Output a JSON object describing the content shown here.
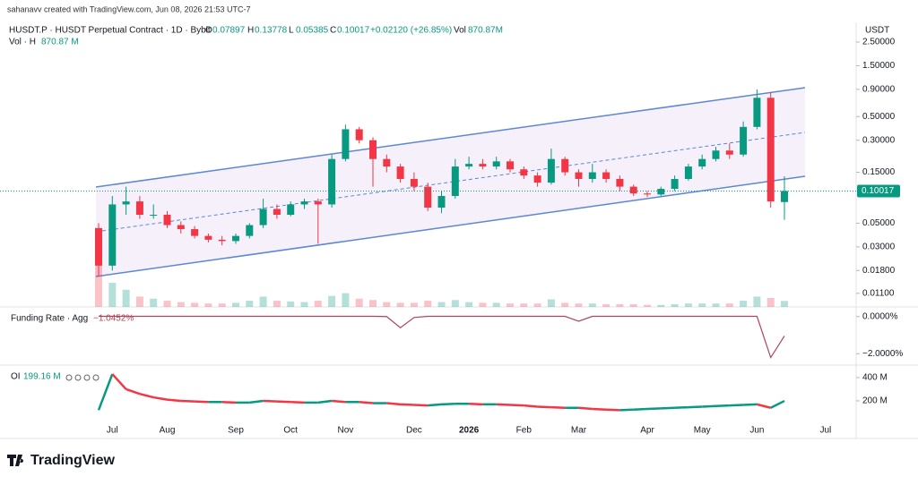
{
  "header": {
    "credit": "sahanavv created with TradingView.com, Jun 08, 2026 21:53 UTC-7",
    "symbol": "HUSDT.P · HUSDT Perpetual Contract · 1D · Bybit",
    "ohlc_labels": [
      "O",
      "H",
      "L",
      "C"
    ],
    "change": "+0.02120 (+26.85%)",
    "vol_label": "Vol",
    "vol_value": "870.87M",
    "currency": "USDT",
    "logo": "TradingView"
  },
  "chart_data": [
    {
      "type": "candlestick",
      "log_scale": true,
      "categories": [
        null,
        "Jul",
        null,
        null,
        null,
        "Aug",
        null,
        null,
        null,
        null,
        "Sep",
        null,
        null,
        null,
        "Oct",
        null,
        null,
        null,
        "Nov",
        null,
        null,
        null,
        null,
        "Dec",
        null,
        null,
        null,
        "2026",
        null,
        null,
        null,
        "Feb",
        null,
        null,
        null,
        "Mar",
        null,
        null,
        null,
        null,
        "Apr",
        null,
        null,
        null,
        "May",
        null,
        null,
        null,
        "Jun",
        null,
        null,
        null,
        null,
        "Jul"
      ],
      "series": [
        {
          "name": "HUSDT.P",
          "open": [
            0.045,
            0.02,
            0.075,
            0.08,
            0.06,
            0.06,
            0.048,
            0.044,
            0.038,
            0.035,
            0.034,
            0.038,
            0.048,
            0.068,
            0.06,
            0.075,
            0.08,
            0.075,
            0.2,
            0.38,
            0.3,
            0.2,
            0.17,
            0.13,
            0.11,
            0.07,
            0.09,
            0.17,
            0.18,
            0.17,
            0.19,
            0.16,
            0.14,
            0.12,
            0.2,
            0.15,
            0.13,
            0.15,
            0.13,
            0.11,
            0.095,
            0.093,
            0.105,
            0.13,
            0.17,
            0.2,
            0.24,
            0.22,
            0.4,
            0.75,
            0.07897,
            null,
            null,
            null
          ],
          "high": [
            0.05,
            0.09,
            0.11,
            0.09,
            0.075,
            0.065,
            0.052,
            0.047,
            0.04,
            0.038,
            0.04,
            0.05,
            0.085,
            0.075,
            0.08,
            0.085,
            0.085,
            0.22,
            0.42,
            0.4,
            0.32,
            0.22,
            0.18,
            0.15,
            0.12,
            0.1,
            0.2,
            0.21,
            0.2,
            0.21,
            0.2,
            0.17,
            0.15,
            0.25,
            0.21,
            0.16,
            0.18,
            0.16,
            0.14,
            0.115,
            0.1,
            0.11,
            0.14,
            0.18,
            0.22,
            0.26,
            0.28,
            0.45,
            0.9,
            0.85,
            0.13778,
            null,
            null,
            null
          ],
          "low": [
            0.016,
            0.018,
            0.06,
            0.055,
            0.055,
            0.045,
            0.04,
            0.036,
            0.033,
            0.031,
            0.032,
            0.036,
            0.045,
            0.055,
            0.058,
            0.068,
            0.032,
            0.07,
            0.19,
            0.28,
            0.11,
            0.15,
            0.12,
            0.1,
            0.065,
            0.062,
            0.085,
            0.16,
            0.16,
            0.16,
            0.15,
            0.13,
            0.11,
            0.115,
            0.14,
            0.11,
            0.12,
            0.12,
            0.1,
            0.09,
            0.088,
            0.09,
            0.1,
            0.125,
            0.16,
            0.19,
            0.2,
            0.21,
            0.38,
            0.07,
            0.05385,
            null,
            null,
            null
          ],
          "close": [
            0.02,
            0.075,
            0.08,
            0.06,
            0.06,
            0.048,
            0.044,
            0.038,
            0.035,
            0.034,
            0.038,
            0.048,
            0.068,
            0.06,
            0.075,
            0.08,
            0.075,
            0.2,
            0.38,
            0.3,
            0.2,
            0.17,
            0.13,
            0.11,
            0.07,
            0.09,
            0.17,
            0.18,
            0.17,
            0.19,
            0.16,
            0.14,
            0.12,
            0.2,
            0.15,
            0.13,
            0.15,
            0.13,
            0.11,
            0.095,
            0.093,
            0.105,
            0.13,
            0.17,
            0.2,
            0.24,
            0.22,
            0.4,
            0.75,
            0.08,
            0.10017,
            null,
            null,
            null
          ]
        }
      ],
      "up_color": "#089981",
      "down_color": "#f23645",
      "ylim": [
        0.0082,
        2.86
      ],
      "yticks": [
        {
          "value": 2.5,
          "label": "2.50000"
        },
        {
          "value": 1.5,
          "label": "1.50000"
        },
        {
          "value": 0.9,
          "label": "0.90000"
        },
        {
          "value": 0.5,
          "label": "0.50000"
        },
        {
          "value": 0.3,
          "label": "0.30000"
        },
        {
          "value": 0.15,
          "label": "0.15000"
        },
        {
          "value": 0.05,
          "label": "0.05000"
        },
        {
          "value": 0.03,
          "label": "0.03000"
        },
        {
          "value": 0.018,
          "label": "0.01800"
        },
        {
          "value": 0.011,
          "label": "0.01100"
        }
      ],
      "volume": {
        "name": "Vol · H",
        "value_label": "870.87 M",
        "values": [
          6500,
          3500,
          2500,
          1500,
          1200,
          900,
          700,
          600,
          500,
          500,
          600,
          900,
          1500,
          900,
          800,
          700,
          900,
          1600,
          2000,
          1200,
          1000,
          700,
          600,
          600,
          900,
          700,
          1000,
          700,
          600,
          600,
          500,
          500,
          500,
          1100,
          600,
          500,
          500,
          400,
          400,
          400,
          300,
          300,
          400,
          500,
          500,
          500,
          500,
          900,
          1500,
          1300,
          870.87,
          null,
          null,
          null
        ]
      }
    },
    {
      "type": "line",
      "name": "Funding Rate · Agg",
      "value_label": "−1.0452%",
      "color": "#b0445a",
      "values": [
        0.01,
        0.01,
        0.01,
        0.01,
        0.01,
        0.01,
        0.01,
        0.01,
        0.01,
        0.01,
        0.01,
        0.01,
        0.01,
        0.01,
        0.01,
        0.01,
        0.01,
        0.01,
        0.01,
        0.01,
        0.01,
        0.0,
        -0.6,
        -0.05,
        0.01,
        0.01,
        0.01,
        0.01,
        0.01,
        0.01,
        0.01,
        0.01,
        0.01,
        0.01,
        0.01,
        -0.25,
        0.01,
        0.01,
        0.01,
        0.01,
        0.01,
        0.01,
        0.01,
        0.01,
        0.01,
        0.01,
        0.01,
        0.01,
        0.01,
        -2.2,
        -1.0452,
        null,
        null,
        null
      ],
      "ylim": [
        -2.51,
        0.42
      ],
      "yticks": [
        {
          "value": 0,
          "label": "0.0000%"
        },
        {
          "value": -2,
          "label": "−2.0000%"
        }
      ]
    },
    {
      "type": "line",
      "name": "OI",
      "value_label": "199.16 M",
      "up_color": "#089981",
      "down_color": "#f23645",
      "values": [
        120,
        430,
        300,
        260,
        230,
        210,
        200,
        195,
        190,
        190,
        185,
        185,
        200,
        195,
        190,
        185,
        185,
        200,
        190,
        190,
        180,
        180,
        170,
        165,
        160,
        170,
        175,
        175,
        170,
        170,
        165,
        160,
        150,
        145,
        140,
        140,
        130,
        125,
        120,
        125,
        130,
        135,
        140,
        145,
        150,
        155,
        160,
        165,
        170,
        140,
        199.16,
        null,
        null,
        null
      ],
      "ylim": [
        15,
        492
      ],
      "yticks": [
        {
          "value": 400,
          "label": "400 M"
        },
        {
          "value": 200,
          "label": "200 M"
        }
      ]
    }
  ]
}
